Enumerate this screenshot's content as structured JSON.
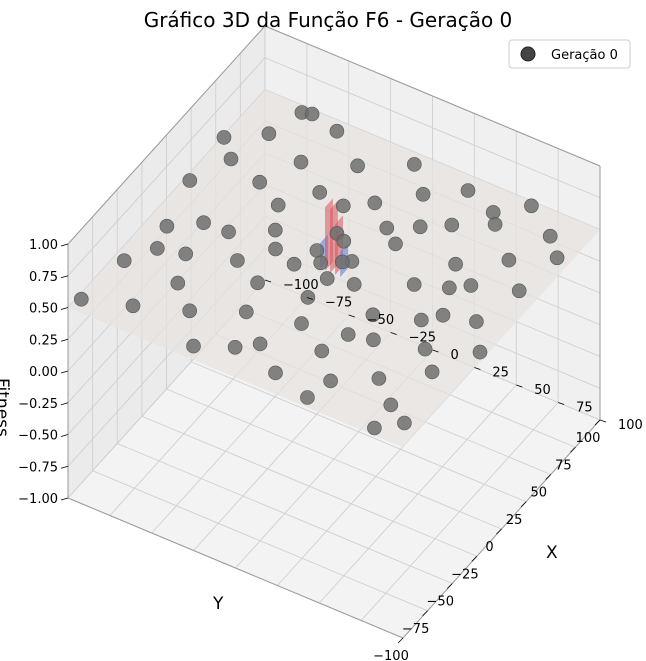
{
  "chart_data": {
    "type": "scatter",
    "title": "Gráfico 3D da Função F6 - Geração 0",
    "xlabel": "X",
    "ylabel": "Y",
    "zlabel": "Fitness",
    "xlim": [
      -100,
      100
    ],
    "ylim": [
      -100,
      100
    ],
    "zlim": [
      -1,
      1
    ],
    "x_ticks": [
      "−100",
      "−75",
      "−50",
      "−25",
      "0",
      "25",
      "50",
      "75",
      "100"
    ],
    "y_ticks": [
      "−100",
      "−75",
      "−50",
      "−25",
      "0",
      "25",
      "50",
      "75",
      "100"
    ],
    "z_ticks": [
      "−1.00",
      "−0.75",
      "−0.50",
      "−0.25",
      "0.00",
      "0.25",
      "0.50",
      "0.75",
      "1.00"
    ],
    "legend": {
      "placement": "top-right",
      "label": "Geração 0"
    },
    "colors": {
      "points": "#6e6e6e",
      "surface": "#e8e2de",
      "peak_red": "#d9535d",
      "peak_blue": "#5a77d6"
    },
    "series": [
      {
        "name": "Geração 0",
        "points": [
          [
            -95,
            -95,
            0.55
          ],
          [
            -90,
            -60,
            0.58
          ],
          [
            -88,
            -20,
            0.52
          ],
          [
            -92,
            10,
            0.6
          ],
          [
            -85,
            40,
            0.55
          ],
          [
            -80,
            70,
            0.52
          ],
          [
            -75,
            95,
            0.5
          ],
          [
            -70,
            -85,
            0.55
          ],
          [
            -65,
            -40,
            0.6
          ],
          [
            -60,
            -5,
            0.5
          ],
          [
            -62,
            30,
            0.58
          ],
          [
            -55,
            60,
            0.52
          ],
          [
            -50,
            88,
            0.55
          ],
          [
            -45,
            -70,
            0.52
          ],
          [
            -40,
            -30,
            0.6
          ],
          [
            -38,
            5,
            0.55
          ],
          [
            -35,
            45,
            0.52
          ],
          [
            -30,
            75,
            0.5
          ],
          [
            -28,
            -95,
            0.55
          ],
          [
            -20,
            -55,
            0.52
          ],
          [
            -15,
            -15,
            0.58
          ],
          [
            -10,
            20,
            0.55
          ],
          [
            -8,
            55,
            0.5
          ],
          [
            -5,
            90,
            0.52
          ],
          [
            0,
            -75,
            0.55
          ],
          [
            5,
            -35,
            0.6
          ],
          [
            8,
            40,
            0.52
          ],
          [
            12,
            70,
            0.55
          ],
          [
            15,
            -5,
            0.5
          ],
          [
            18,
            -90,
            0.55
          ],
          [
            22,
            25,
            0.6
          ],
          [
            28,
            -60,
            0.52
          ],
          [
            30,
            85,
            0.55
          ],
          [
            35,
            -20,
            0.5
          ],
          [
            38,
            55,
            0.58
          ],
          [
            42,
            10,
            0.52
          ],
          [
            45,
            -80,
            0.55
          ],
          [
            50,
            -45,
            0.6
          ],
          [
            52,
            35,
            0.52
          ],
          [
            55,
            70,
            0.55
          ],
          [
            58,
            -10,
            0.5
          ],
          [
            62,
            95,
            0.52
          ],
          [
            65,
            -65,
            0.55
          ],
          [
            70,
            20,
            0.58
          ],
          [
            72,
            -30,
            0.52
          ],
          [
            75,
            50,
            0.55
          ],
          [
            80,
            -95,
            0.5
          ],
          [
            82,
            80,
            0.52
          ],
          [
            85,
            0,
            0.55
          ],
          [
            88,
            -50,
            0.6
          ],
          [
            90,
            35,
            0.52
          ],
          [
            95,
            65,
            0.55
          ],
          [
            96,
            -15,
            0.5
          ],
          [
            -98,
            55,
            0.52
          ],
          [
            -72,
            -10,
            0.55
          ],
          [
            -58,
            -60,
            0.58
          ],
          [
            -48,
            25,
            0.52
          ],
          [
            -25,
            -35,
            0.55
          ],
          [
            -12,
            -80,
            0.5
          ],
          [
            2,
            5,
            0.52
          ],
          [
            10,
            -50,
            0.55
          ],
          [
            25,
            45,
            0.58
          ],
          [
            40,
            -95,
            0.52
          ],
          [
            60,
            15,
            0.55
          ],
          [
            78,
            -75,
            0.5
          ],
          [
            92,
            -85,
            0.52
          ],
          [
            -82,
            -40,
            0.55
          ],
          [
            -66,
            90,
            0.58
          ],
          [
            -32,
            -5,
            0.52
          ],
          [
            -18,
            40,
            0.55
          ],
          [
            32,
            -40,
            0.5
          ],
          [
            48,
            80,
            0.52
          ],
          [
            68,
            -5,
            0.55
          ],
          [
            -5,
            -5,
            0.56
          ],
          [
            3,
            -12,
            0.54
          ],
          [
            -12,
            3,
            0.55
          ],
          [
            6,
            8,
            0.52
          ],
          [
            -3,
            15,
            0.57
          ]
        ]
      }
    ]
  }
}
